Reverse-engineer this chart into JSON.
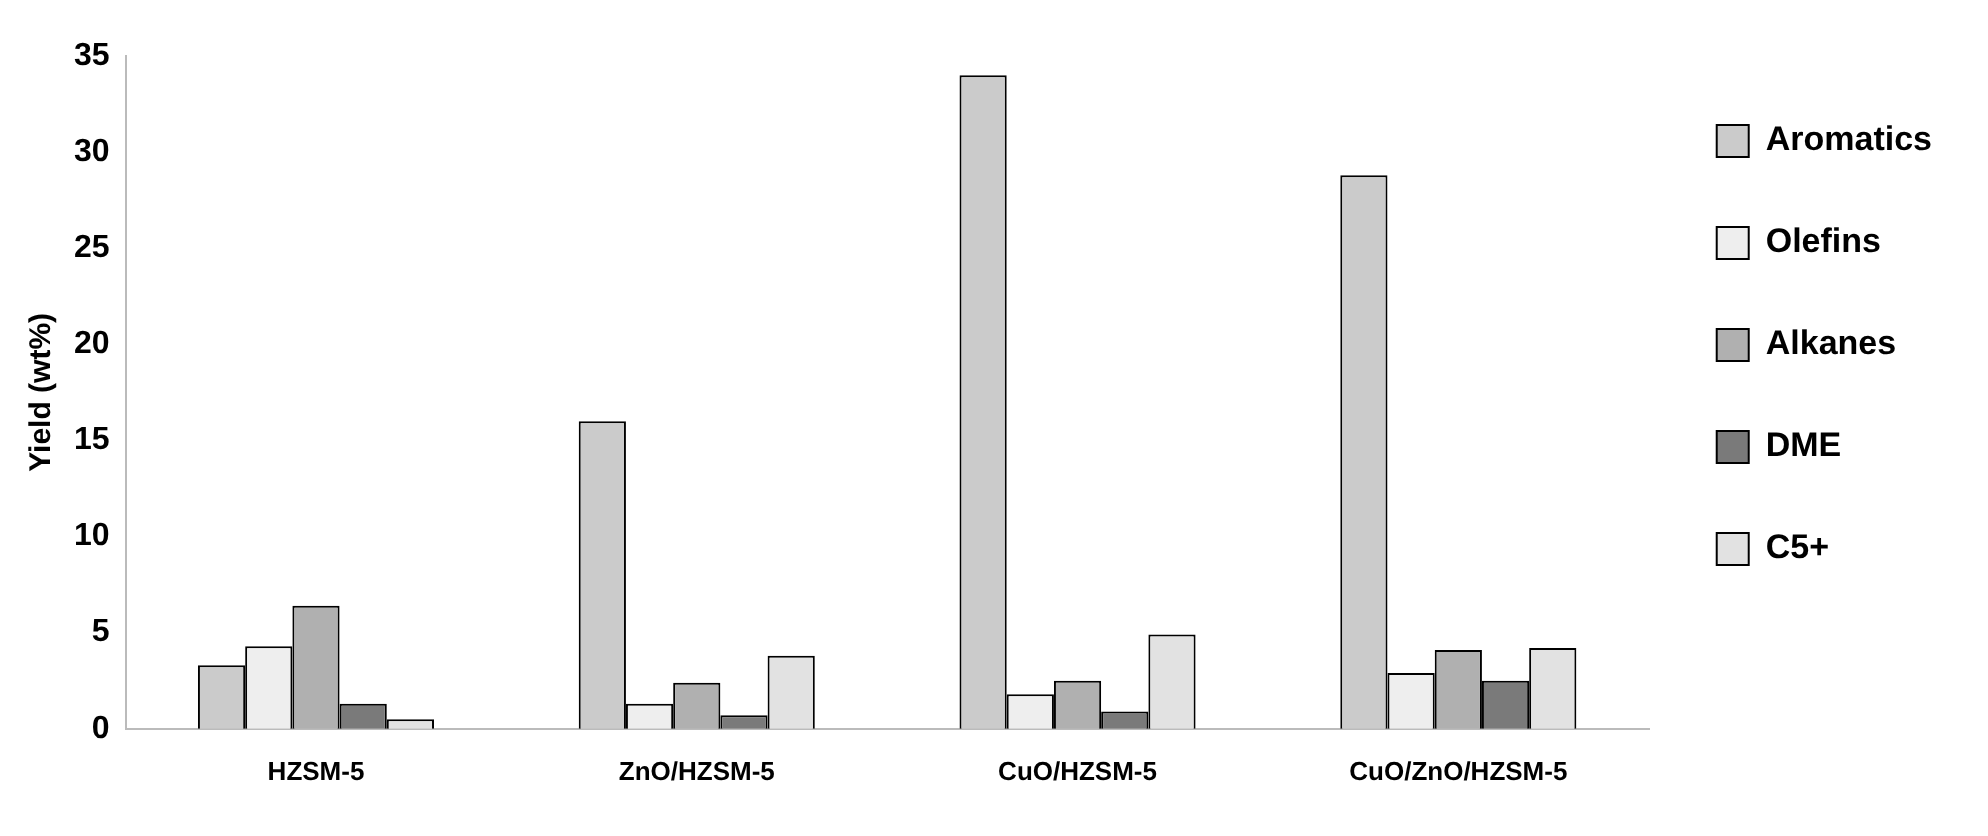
{
  "chart_data": {
    "type": "bar",
    "ylabel": "Yield (wt%)",
    "categories": [
      "HZSM-5",
      "ZnO/HZSM-5",
      "CuO/HZSM-5",
      "CuO/ZnO/HZSM-5"
    ],
    "series": [
      {
        "name": "Aromatics",
        "color": "#cbcbcb",
        "values": [
          3.3,
          16,
          34,
          28.8
        ]
      },
      {
        "name": "Olefins",
        "color": "#eeeeee",
        "values": [
          4.3,
          1.3,
          1.8,
          2.9
        ]
      },
      {
        "name": "Alkanes",
        "color": "#b0b0b0",
        "values": [
          6.4,
          2.4,
          2.5,
          4.1
        ]
      },
      {
        "name": "DME",
        "color": "#7a7a7a",
        "values": [
          1.3,
          0.7,
          0.9,
          2.5
        ]
      },
      {
        "name": "C5+",
        "color": "#e2e2e2",
        "values": [
          0.5,
          3.8,
          4.9,
          4.2
        ]
      }
    ],
    "ylim": [
      0,
      35
    ],
    "yticks": [
      0,
      5,
      10,
      15,
      20,
      25,
      30,
      35
    ],
    "grid": false,
    "legend": "right"
  }
}
